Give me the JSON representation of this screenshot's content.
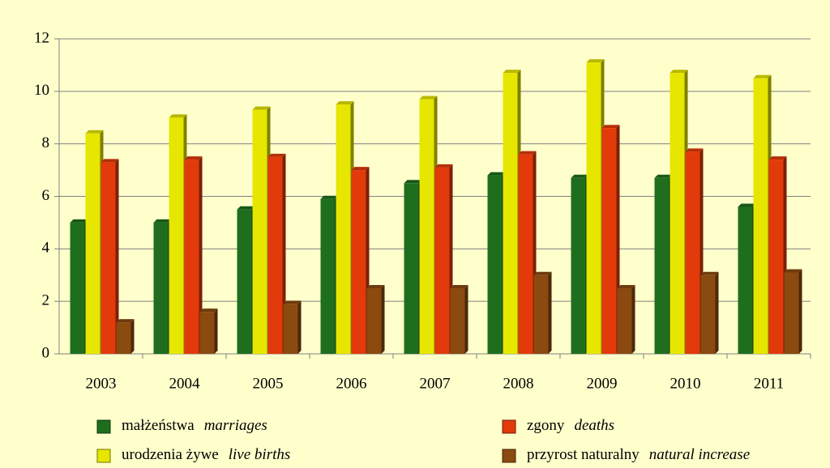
{
  "chart_data": {
    "type": "bar",
    "categories": [
      "2003",
      "2004",
      "2005",
      "2006",
      "2007",
      "2008",
      "2009",
      "2010",
      "2011"
    ],
    "series": [
      {
        "name": "małżeństwa",
        "name_en": "marriages",
        "color": "#1e6e1e",
        "values": [
          5.0,
          5.0,
          5.5,
          5.9,
          6.5,
          6.8,
          6.7,
          6.7,
          5.6
        ]
      },
      {
        "name": "urodzenia żywe",
        "name_en": "live births",
        "color": "#e6e600",
        "values": [
          8.4,
          9.0,
          9.3,
          9.5,
          9.7,
          10.7,
          11.1,
          10.7,
          10.5
        ]
      },
      {
        "name": "zgony",
        "name_en": "deaths",
        "color": "#e23a0a",
        "values": [
          7.3,
          7.4,
          7.5,
          7.0,
          7.1,
          7.6,
          8.6,
          7.7,
          7.4
        ]
      },
      {
        "name": "przyrost naturalny",
        "name_en": "natural increase",
        "color": "#8a4a10",
        "values": [
          1.2,
          1.6,
          1.9,
          2.5,
          2.5,
          3.0,
          2.5,
          3.0,
          3.1
        ]
      }
    ],
    "ylim": [
      0,
      12
    ],
    "yticks": [
      0,
      2,
      4,
      6,
      8,
      10,
      12
    ],
    "grid": true
  }
}
